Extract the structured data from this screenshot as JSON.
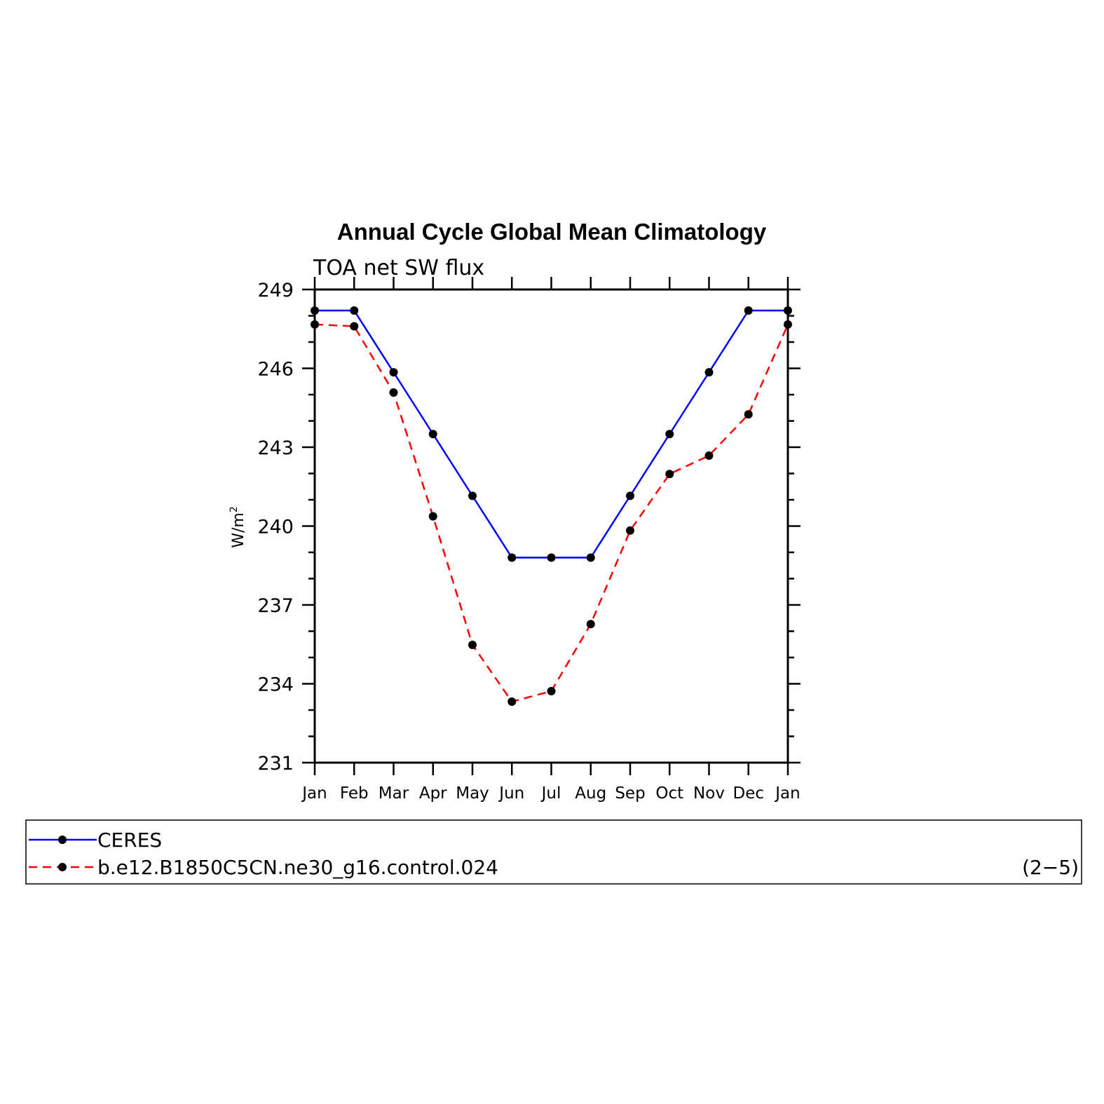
{
  "chart_data": {
    "type": "line",
    "title": "Annual Cycle Global Mean Climatology",
    "subtitle": "TOA net SW flux",
    "ylabel": "W/m",
    "ylabel_sup": "2",
    "categories": [
      "Jan",
      "Feb",
      "Mar",
      "Apr",
      "May",
      "Jun",
      "Jul",
      "Aug",
      "Sep",
      "Oct",
      "Nov",
      "Dec",
      "Jan"
    ],
    "ylim": [
      231,
      249
    ],
    "yticks": [
      231,
      234,
      237,
      240,
      243,
      246,
      249
    ],
    "series": [
      {
        "name": "CERES",
        "color": "#0000ff",
        "dash": "solid",
        "marker": "dot",
        "values": [
          248.2,
          248.2,
          245.85,
          243.5,
          241.15,
          238.8,
          238.8,
          238.8,
          241.15,
          243.5,
          245.85,
          248.2,
          248.2
        ]
      },
      {
        "name": "b.e12.B1850C5CN.ne30_g16.control.024",
        "color": "#ff0000",
        "dash": "dashed",
        "marker": "dot",
        "values": [
          247.67,
          247.6,
          245.08,
          240.37,
          235.48,
          233.32,
          233.72,
          236.27,
          239.83,
          241.98,
          242.68,
          244.25,
          247.67
        ]
      }
    ],
    "grid": false,
    "legend_position": "bottom",
    "legend_note": "(2−5)"
  }
}
